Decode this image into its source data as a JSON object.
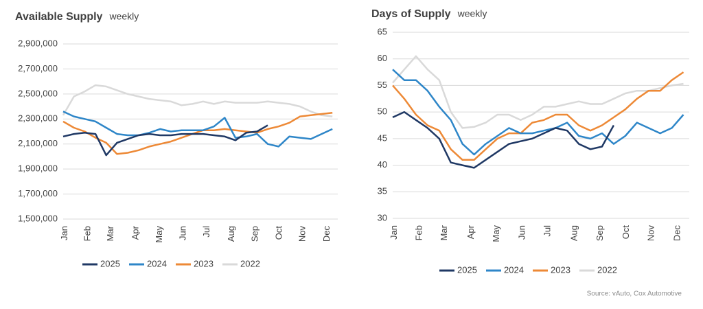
{
  "chart_data": [
    {
      "type": "line",
      "title": "Available Supply",
      "subtitle": "weekly",
      "x": [
        1,
        3,
        5,
        7,
        9,
        11,
        13,
        15,
        17,
        19,
        21,
        23,
        25,
        27,
        29,
        31,
        33,
        35,
        37,
        39,
        41,
        43,
        45,
        47,
        49,
        51
      ],
      "xlim": [
        1,
        52
      ],
      "xticks": [
        {
          "value": 1.3,
          "label": "Jan"
        },
        {
          "value": 5.6,
          "label": "Feb"
        },
        {
          "value": 9.9,
          "label": "Mar"
        },
        {
          "value": 14.5,
          "label": "Apr"
        },
        {
          "value": 18.9,
          "label": "May"
        },
        {
          "value": 23.3,
          "label": "Jun"
        },
        {
          "value": 27.7,
          "label": "Jul"
        },
        {
          "value": 32.3,
          "label": "Aug"
        },
        {
          "value": 36.7,
          "label": "Sep"
        },
        {
          "value": 41.2,
          "label": "Oct"
        },
        {
          "value": 45.5,
          "label": "Nov"
        },
        {
          "value": 50,
          "label": "Dec"
        }
      ],
      "ylim": [
        1500000,
        2900000
      ],
      "yticks": [
        {
          "value": 1500000,
          "label": "1,500,000"
        },
        {
          "value": 1700000,
          "label": "1,700,000"
        },
        {
          "value": 1900000,
          "label": "1,900,000"
        },
        {
          "value": 2100000,
          "label": "2,100,000"
        },
        {
          "value": 2300000,
          "label": "2,300,000"
        },
        {
          "value": 2500000,
          "label": "2,500,000"
        },
        {
          "value": 2700000,
          "label": "2,700,000"
        },
        {
          "value": 2900000,
          "label": "2,900,000"
        }
      ],
      "grid": true,
      "legend": "bottom",
      "series": [
        {
          "name": "2025",
          "color": "#1f3864",
          "values": [
            2160000,
            2180000,
            2190000,
            2180000,
            2010000,
            2110000,
            2140000,
            2170000,
            2180000,
            2170000,
            2170000,
            2180000,
            2180000,
            2180000,
            2170000,
            2160000,
            2130000,
            2190000,
            2200000,
            2250000,
            null,
            null,
            null,
            null,
            null,
            null
          ]
        },
        {
          "name": "2024",
          "color": "#2e86c8",
          "values": [
            2360000,
            2320000,
            2300000,
            2280000,
            2230000,
            2180000,
            2170000,
            2170000,
            2190000,
            2220000,
            2200000,
            2210000,
            2210000,
            2210000,
            2240000,
            2310000,
            2150000,
            2160000,
            2180000,
            2100000,
            2080000,
            2160000,
            2150000,
            2140000,
            2180000,
            2220000
          ]
        },
        {
          "name": "2023",
          "color": "#ed8936",
          "values": [
            2280000,
            2230000,
            2200000,
            2150000,
            2110000,
            2020000,
            2030000,
            2050000,
            2080000,
            2100000,
            2120000,
            2150000,
            2180000,
            2210000,
            2210000,
            2220000,
            2210000,
            2200000,
            2190000,
            2220000,
            2240000,
            2270000,
            2320000,
            2330000,
            2340000,
            2350000
          ]
        },
        {
          "name": "2022",
          "color": "#d9d9d9",
          "values": [
            2330000,
            2480000,
            2520000,
            2570000,
            2560000,
            2530000,
            2500000,
            2480000,
            2460000,
            2450000,
            2440000,
            2410000,
            2420000,
            2440000,
            2420000,
            2440000,
            2430000,
            2430000,
            2430000,
            2440000,
            2430000,
            2420000,
            2400000,
            2360000,
            2330000,
            2320000
          ]
        }
      ]
    },
    {
      "type": "line",
      "title": "Days of Supply",
      "subtitle": "weekly",
      "x": [
        1,
        3,
        5,
        7,
        9,
        11,
        13,
        15,
        17,
        19,
        21,
        23,
        25,
        27,
        29,
        31,
        33,
        35,
        37,
        39,
        41,
        43,
        45,
        47,
        49,
        51
      ],
      "xlim": [
        1,
        52
      ],
      "xticks": [
        {
          "value": 1.3,
          "label": "Jan"
        },
        {
          "value": 5.6,
          "label": "Feb"
        },
        {
          "value": 9.9,
          "label": "Mar"
        },
        {
          "value": 14.5,
          "label": "Apr"
        },
        {
          "value": 18.9,
          "label": "May"
        },
        {
          "value": 23.3,
          "label": "Jun"
        },
        {
          "value": 27.7,
          "label": "Jul"
        },
        {
          "value": 32.3,
          "label": "Aug"
        },
        {
          "value": 36.7,
          "label": "Sep"
        },
        {
          "value": 41.2,
          "label": "Oct"
        },
        {
          "value": 45.5,
          "label": "Nov"
        },
        {
          "value": 50,
          "label": "Dec"
        }
      ],
      "ylim": [
        30,
        65
      ],
      "yticks": [
        30,
        35,
        40,
        45,
        50,
        55,
        60,
        65
      ],
      "grid": true,
      "legend": "bottom",
      "series": [
        {
          "name": "2025",
          "color": "#1f3864",
          "values": [
            49,
            50,
            48.5,
            47,
            45,
            40.5,
            40,
            39.5,
            41,
            42.5,
            44,
            44.5,
            45,
            46,
            47,
            46.5,
            44,
            43,
            43.5,
            47.5,
            null,
            null,
            null,
            null,
            null,
            null
          ]
        },
        {
          "name": "2024",
          "color": "#2e86c8",
          "values": [
            58,
            56,
            56,
            54,
            51,
            48.5,
            44,
            42,
            44,
            45.5,
            47,
            46,
            46,
            46.5,
            47,
            48,
            45.5,
            45,
            46,
            44,
            45.5,
            48,
            47,
            46,
            47,
            49.5
          ]
        },
        {
          "name": "2023",
          "color": "#ed8936",
          "values": [
            55,
            52.5,
            49.5,
            47.5,
            46.5,
            43,
            41,
            41,
            43,
            45,
            46,
            46,
            48,
            48.5,
            49.5,
            49.5,
            47.5,
            46.5,
            47.5,
            49,
            50.5,
            52.5,
            54,
            54,
            56,
            57.5
          ]
        },
        {
          "name": "2022",
          "color": "#d9d9d9",
          "values": [
            55.5,
            58,
            60.5,
            58,
            56,
            50,
            47,
            47.2,
            48,
            49.5,
            49.5,
            48.5,
            49.5,
            51,
            51,
            51.5,
            52,
            51.5,
            51.5,
            52.5,
            53.5,
            54,
            54,
            54.5,
            55,
            55.3
          ]
        }
      ]
    }
  ],
  "source": "Source: vAuto, Cox Automotive"
}
